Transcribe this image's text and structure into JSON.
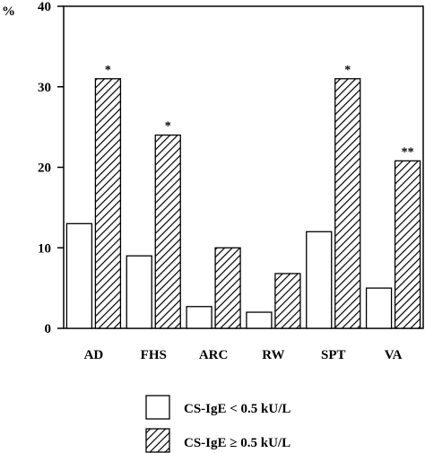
{
  "chart_data": {
    "type": "bar",
    "ylabel": "%",
    "ylim": [
      0,
      40
    ],
    "yticks": [
      0,
      10,
      20,
      30,
      40
    ],
    "categories": [
      "AD",
      "FHS",
      "ARC",
      "RW",
      "SPT",
      "VA"
    ],
    "series": [
      {
        "name": "CS-IgE < 0.5 kU/L",
        "pattern": "white",
        "values": [
          13,
          9,
          2.7,
          2,
          12,
          5
        ]
      },
      {
        "name": "CS-IgE ≥ 0.5 kU/L",
        "pattern": "hatched",
        "values": [
          31,
          24,
          10,
          6.8,
          31,
          20.8
        ]
      }
    ],
    "annotations": [
      "*",
      "*",
      "",
      "",
      "*",
      "**"
    ],
    "grid": false,
    "legend_position": "bottom-center"
  },
  "colors": {
    "stroke": "#000000",
    "fill_plain": "#ffffff",
    "hatch": "#000000"
  }
}
